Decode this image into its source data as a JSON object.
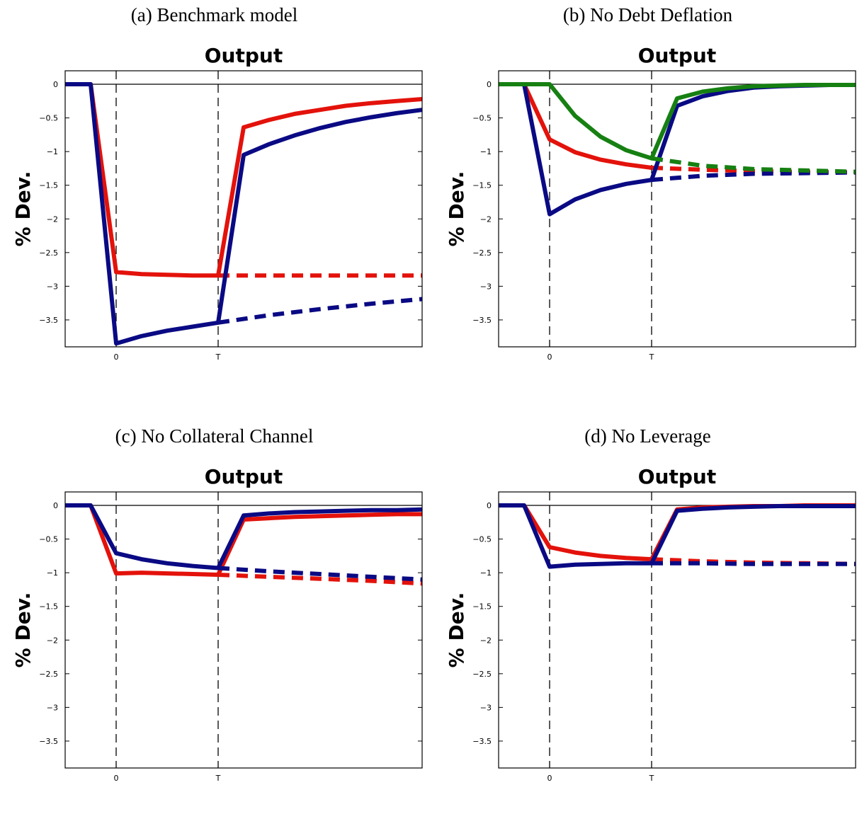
{
  "chart_data": [
    {
      "type": "line",
      "caption": "(a) Benchmark model",
      "title": "Output",
      "ylabel": "% Dev.",
      "xlabel": "",
      "ylim": [
        -3.9,
        0.2
      ],
      "yticks": [
        0,
        -0.5,
        -1,
        -1.5,
        -2,
        -2.5,
        -3,
        -3.5
      ],
      "ytick_labels": [
        "0",
        "−0.5",
        "−1",
        "−1.5",
        "−2",
        "−2.5",
        "−3",
        "−3.5"
      ],
      "xlim": [
        -2,
        12
      ],
      "xticks": [
        0,
        4
      ],
      "xtick_labels": [
        "0",
        "T"
      ],
      "vlines": [
        0,
        4
      ],
      "series": [
        {
          "color": "#e3120b",
          "style": "solid",
          "x": [
            -2,
            -1,
            0,
            1,
            2,
            3,
            4,
            5,
            6,
            7,
            8,
            9,
            10,
            11,
            12
          ],
          "y": [
            0,
            0,
            -2.79,
            -2.82,
            -2.83,
            -2.84,
            -2.84,
            -0.64,
            -0.53,
            -0.44,
            -0.38,
            -0.32,
            -0.28,
            -0.25,
            -0.22
          ]
        },
        {
          "color": "#e3120b",
          "style": "dashed",
          "x": [
            4,
            6,
            8,
            10,
            12
          ],
          "y": [
            -2.84,
            -2.84,
            -2.84,
            -2.84,
            -2.84
          ]
        },
        {
          "color": "#0a0a84",
          "style": "solid",
          "x": [
            -2,
            -1,
            0,
            1,
            2,
            3,
            4,
            5,
            6,
            7,
            8,
            9,
            10,
            11,
            12
          ],
          "y": [
            0,
            0,
            -3.85,
            -3.74,
            -3.66,
            -3.6,
            -3.54,
            -1.05,
            -0.89,
            -0.76,
            -0.65,
            -0.56,
            -0.49,
            -0.43,
            -0.38
          ]
        },
        {
          "color": "#0a0a84",
          "style": "dashed",
          "x": [
            4,
            6,
            8,
            10,
            12
          ],
          "y": [
            -3.54,
            -3.43,
            -3.34,
            -3.26,
            -3.19
          ]
        }
      ]
    },
    {
      "type": "line",
      "caption": "(b) No Debt Deflation",
      "title": "Output",
      "ylabel": "% Dev.",
      "xlabel": "",
      "ylim": [
        -3.9,
        0.2
      ],
      "yticks": [
        0,
        -0.5,
        -1,
        -1.5,
        -2,
        -2.5,
        -3,
        -3.5
      ],
      "ytick_labels": [
        "0",
        "−0.5",
        "−1",
        "−1.5",
        "−2",
        "−2.5",
        "−3",
        "−3.5"
      ],
      "xlim": [
        -2,
        12
      ],
      "xticks": [
        0,
        4
      ],
      "xtick_labels": [
        "0",
        "T"
      ],
      "vlines": [
        0,
        4
      ],
      "series": [
        {
          "color": "#e3120b",
          "style": "solid",
          "x": [
            -2,
            -1,
            0,
            1,
            2,
            3,
            4
          ],
          "y": [
            0,
            0,
            -0.82,
            -1.01,
            -1.12,
            -1.19,
            -1.24
          ]
        },
        {
          "color": "#e3120b",
          "style": "dashed",
          "x": [
            4,
            6,
            8,
            10,
            12
          ],
          "y": [
            -1.24,
            -1.27,
            -1.29,
            -1.3,
            -1.31
          ]
        },
        {
          "color": "#0a0a84",
          "style": "solid",
          "x": [
            -2,
            -1,
            0,
            1,
            2,
            3,
            4,
            5,
            6,
            7,
            8,
            9,
            10,
            11,
            12
          ],
          "y": [
            0,
            0,
            -1.93,
            -1.71,
            -1.57,
            -1.48,
            -1.42,
            -0.32,
            -0.18,
            -0.1,
            -0.05,
            -0.03,
            -0.02,
            -0.01,
            -0.01
          ]
        },
        {
          "color": "#0a0a84",
          "style": "dashed",
          "x": [
            4,
            6,
            8,
            10,
            12
          ],
          "y": [
            -1.42,
            -1.36,
            -1.33,
            -1.32,
            -1.31
          ]
        },
        {
          "color": "#168012",
          "style": "solid",
          "x": [
            -2,
            -1,
            0,
            1,
            2,
            3,
            4,
            5,
            6,
            7,
            8,
            9,
            10,
            11,
            12
          ],
          "y": [
            0,
            0,
            0,
            -0.47,
            -0.78,
            -0.98,
            -1.1,
            -0.21,
            -0.11,
            -0.06,
            -0.03,
            -0.02,
            -0.01,
            -0.01,
            -0.01
          ]
        },
        {
          "color": "#168012",
          "style": "dashed",
          "x": [
            4,
            6,
            8,
            10,
            12
          ],
          "y": [
            -1.1,
            -1.21,
            -1.26,
            -1.28,
            -1.3
          ]
        }
      ]
    },
    {
      "type": "line",
      "caption": "(c) No Collateral Channel",
      "title": "Output",
      "ylabel": "% Dev.",
      "xlabel": "",
      "ylim": [
        -3.9,
        0.2
      ],
      "yticks": [
        0,
        -0.5,
        -1,
        -1.5,
        -2,
        -2.5,
        -3,
        -3.5
      ],
      "ytick_labels": [
        "0",
        "−0.5",
        "−1",
        "−1.5",
        "−2",
        "−2.5",
        "−3",
        "−3.5"
      ],
      "xlim": [
        -2,
        12
      ],
      "xticks": [
        0,
        4
      ],
      "xtick_labels": [
        "0",
        "T"
      ],
      "vlines": [
        0,
        4
      ],
      "series": [
        {
          "color": "#e3120b",
          "style": "solid",
          "x": [
            -2,
            -1,
            0,
            1,
            2,
            3,
            4,
            5,
            6,
            7,
            8,
            9,
            10,
            11,
            12
          ],
          "y": [
            0,
            0,
            -1.01,
            -1.0,
            -1.01,
            -1.02,
            -1.03,
            -0.21,
            -0.19,
            -0.17,
            -0.16,
            -0.15,
            -0.14,
            -0.13,
            -0.13
          ]
        },
        {
          "color": "#e3120b",
          "style": "dashed",
          "x": [
            4,
            6,
            8,
            10,
            12
          ],
          "y": [
            -1.03,
            -1.06,
            -1.09,
            -1.12,
            -1.16
          ]
        },
        {
          "color": "#0a0a84",
          "style": "solid",
          "x": [
            -2,
            -1,
            0,
            1,
            2,
            3,
            4,
            5,
            6,
            7,
            8,
            9,
            10,
            11,
            12
          ],
          "y": [
            0,
            0,
            -0.71,
            -0.8,
            -0.86,
            -0.9,
            -0.93,
            -0.15,
            -0.12,
            -0.1,
            -0.09,
            -0.08,
            -0.07,
            -0.07,
            -0.06
          ]
        },
        {
          "color": "#0a0a84",
          "style": "dashed",
          "x": [
            4,
            6,
            8,
            10,
            12
          ],
          "y": [
            -0.93,
            -0.98,
            -1.02,
            -1.06,
            -1.1
          ]
        }
      ]
    },
    {
      "type": "line",
      "caption": "(d) No Leverage",
      "title": "Output",
      "ylabel": "% Dev.",
      "xlabel": "",
      "ylim": [
        -3.9,
        0.2
      ],
      "yticks": [
        0,
        -0.5,
        -1,
        -1.5,
        -2,
        -2.5,
        -3,
        -3.5
      ],
      "ytick_labels": [
        "0",
        "−0.5",
        "−1",
        "−1.5",
        "−2",
        "−2.5",
        "−3",
        "−3.5"
      ],
      "xlim": [
        -2,
        12
      ],
      "xticks": [
        0,
        4
      ],
      "xtick_labels": [
        "0",
        "T"
      ],
      "vlines": [
        0,
        4
      ],
      "series": [
        {
          "color": "#e3120b",
          "style": "solid",
          "x": [
            -2,
            -1,
            0,
            1,
            2,
            3,
            4,
            5,
            6,
            7,
            8,
            9,
            10,
            11,
            12
          ],
          "y": [
            0,
            0,
            -0.62,
            -0.7,
            -0.75,
            -0.78,
            -0.8,
            -0.06,
            -0.03,
            -0.02,
            -0.01,
            -0.01,
            0,
            0,
            0
          ]
        },
        {
          "color": "#e3120b",
          "style": "dashed",
          "x": [
            4,
            6,
            8,
            10,
            12
          ],
          "y": [
            -0.8,
            -0.83,
            -0.85,
            -0.86,
            -0.87
          ]
        },
        {
          "color": "#0a0a84",
          "style": "solid",
          "x": [
            -2,
            -1,
            0,
            1,
            2,
            3,
            4,
            5,
            6,
            7,
            8,
            9,
            10,
            11,
            12
          ],
          "y": [
            0,
            0,
            -0.91,
            -0.88,
            -0.87,
            -0.86,
            -0.86,
            -0.08,
            -0.05,
            -0.03,
            -0.02,
            -0.01,
            -0.01,
            -0.01,
            -0.01
          ]
        },
        {
          "color": "#0a0a84",
          "style": "dashed",
          "x": [
            4,
            6,
            8,
            10,
            12
          ],
          "y": [
            -0.86,
            -0.86,
            -0.87,
            -0.87,
            -0.87
          ]
        }
      ]
    }
  ]
}
